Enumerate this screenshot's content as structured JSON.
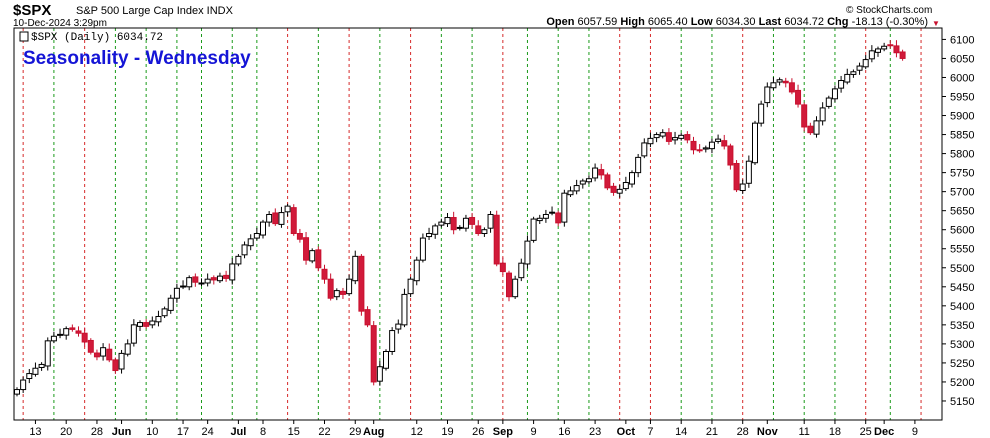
{
  "header": {
    "symbol": "$SPX",
    "name": "S&P 500 Large Cap Index INDX",
    "date_time": "10-Dec-2024 3:29pm",
    "credit": "© StockCharts.com",
    "quote": {
      "open_label": "Open",
      "open": "6057.59",
      "high_label": "High",
      "high": "6065.40",
      "low_label": "Low",
      "low": "6034.30",
      "last_label": "Last",
      "last": "6034.72",
      "chg_label": "Chg",
      "chg": "-18.13 (-0.30%)",
      "arrow": "▼"
    }
  },
  "chart_data": {
    "type": "candlestick",
    "title": "Seasonality - Wednesday",
    "legend": "$SPX (Daily) 6034.72",
    "ylim": [
      5100,
      6130
    ],
    "y_ticks": [
      5150,
      5200,
      5250,
      5300,
      5350,
      5400,
      5450,
      5500,
      5550,
      5600,
      5650,
      5700,
      5750,
      5800,
      5850,
      5900,
      5950,
      6000,
      6050,
      6100
    ],
    "x_tick_labels": [
      {
        "label": "13",
        "i": 3
      },
      {
        "label": "20",
        "i": 8
      },
      {
        "label": "28",
        "i": 13
      },
      {
        "label": "Jun",
        "i": 17,
        "bold": true
      },
      {
        "label": "10",
        "i": 22
      },
      {
        "label": "17",
        "i": 27
      },
      {
        "label": "24",
        "i": 31
      },
      {
        "label": "Jul",
        "i": 36,
        "bold": true
      },
      {
        "label": "8",
        "i": 40
      },
      {
        "label": "15",
        "i": 45
      },
      {
        "label": "22",
        "i": 50
      },
      {
        "label": "29",
        "i": 55
      },
      {
        "label": "Aug",
        "i": 58,
        "bold": true
      },
      {
        "label": "12",
        "i": 65
      },
      {
        "label": "19",
        "i": 70
      },
      {
        "label": "26",
        "i": 75
      },
      {
        "label": "Sep",
        "i": 79,
        "bold": true
      },
      {
        "label": "9",
        "i": 84
      },
      {
        "label": "16",
        "i": 89
      },
      {
        "label": "23",
        "i": 94
      },
      {
        "label": "Oct",
        "i": 99,
        "bold": true
      },
      {
        "label": "7",
        "i": 103
      },
      {
        "label": "14",
        "i": 108
      },
      {
        "label": "21",
        "i": 113
      },
      {
        "label": "28",
        "i": 118
      },
      {
        "label": "Nov",
        "i": 122,
        "bold": true
      },
      {
        "label": "11",
        "i": 128
      },
      {
        "label": "18",
        "i": 133
      },
      {
        "label": "25",
        "i": 138
      },
      {
        "label": "Dec",
        "i": 141,
        "bold": true
      },
      {
        "label": "9",
        "i": 146
      }
    ],
    "wednesday_lines": [
      {
        "i": 1,
        "color": "red"
      },
      {
        "i": 6,
        "color": "green"
      },
      {
        "i": 11,
        "color": "red"
      },
      {
        "i": 16,
        "color": "green"
      },
      {
        "i": 21,
        "color": "green"
      },
      {
        "i": 26,
        "color": "green"
      },
      {
        "i": 30,
        "color": "green"
      },
      {
        "i": 35,
        "color": "green"
      },
      {
        "i": 39,
        "color": "green"
      },
      {
        "i": 44,
        "color": "red"
      },
      {
        "i": 49,
        "color": "green"
      },
      {
        "i": 54,
        "color": "red"
      },
      {
        "i": 59,
        "color": "green"
      },
      {
        "i": 64,
        "color": "red"
      },
      {
        "i": 69,
        "color": "green"
      },
      {
        "i": 74,
        "color": "green"
      },
      {
        "i": 79,
        "color": "red"
      },
      {
        "i": 83,
        "color": "green"
      },
      {
        "i": 88,
        "color": "green"
      },
      {
        "i": 93,
        "color": "green"
      },
      {
        "i": 98,
        "color": "red"
      },
      {
        "i": 103,
        "color": "red"
      },
      {
        "i": 108,
        "color": "green"
      },
      {
        "i": 113,
        "color": "green"
      },
      {
        "i": 118,
        "color": "red"
      },
      {
        "i": 123,
        "color": "green"
      },
      {
        "i": 128,
        "color": "green"
      },
      {
        "i": 133,
        "color": "green"
      },
      {
        "i": 138,
        "color": "red"
      },
      {
        "i": 142,
        "color": "green"
      },
      {
        "i": 147,
        "color": "red"
      }
    ],
    "close_series": [
      5180,
      5205,
      5222,
      5236,
      5246,
      5308,
      5320,
      5325,
      5340,
      5338,
      5328,
      5305,
      5278,
      5266,
      5290,
      5258,
      5230,
      5275,
      5300,
      5350,
      5356,
      5346,
      5360,
      5372,
      5392,
      5420,
      5446,
      5452,
      5474,
      5462,
      5460,
      5470,
      5468,
      5478,
      5472,
      5510,
      5530,
      5560,
      5576,
      5590,
      5620,
      5640,
      5616,
      5645,
      5662,
      5590,
      5575,
      5520,
      5545,
      5500,
      5470,
      5420,
      5440,
      5430,
      5470,
      5530,
      5386,
      5350,
      5200,
      5240,
      5280,
      5335,
      5352,
      5430,
      5470,
      5520,
      5578,
      5590,
      5610,
      5620,
      5632,
      5600,
      5606,
      5630,
      5614,
      5590,
      5600,
      5640,
      5510,
      5490,
      5424,
      5470,
      5512,
      5570,
      5628,
      5630,
      5640,
      5646,
      5618,
      5696,
      5702,
      5716,
      5728,
      5734,
      5762,
      5744,
      5710,
      5698,
      5706,
      5724,
      5750,
      5790,
      5828,
      5840,
      5850,
      5855,
      5832,
      5842,
      5848,
      5836,
      5810,
      5808,
      5815,
      5830,
      5838,
      5820,
      5770,
      5705,
      5720,
      5780,
      5880,
      5930,
      5975,
      5986,
      5994,
      5986,
      5962,
      5930,
      5870,
      5855,
      5886,
      5920,
      5946,
      5970,
      5992,
      6008,
      6015,
      6030,
      6047,
      6070,
      6075,
      6082,
      6085,
      6065,
      6050
    ]
  }
}
